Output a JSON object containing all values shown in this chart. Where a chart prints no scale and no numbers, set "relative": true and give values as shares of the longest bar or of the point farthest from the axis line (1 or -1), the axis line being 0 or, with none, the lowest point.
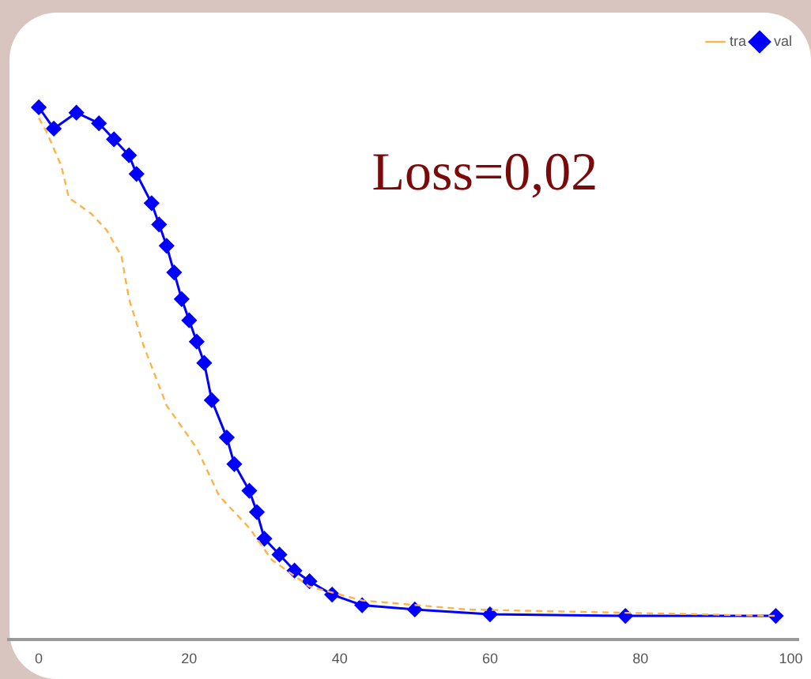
{
  "chart_data": {
    "type": "line",
    "relative": true,
    "xlim": [
      -4,
      101
    ],
    "xticks": [
      0,
      20,
      40,
      60,
      80,
      100
    ],
    "legend": "top right",
    "grid": false,
    "annotations": [
      "Loss=0,02"
    ],
    "series": [
      {
        "name": "tra",
        "color": "#ffb347",
        "line_style": "dashed",
        "marker": "none",
        "x": [
          0,
          1,
          3,
          4,
          7,
          9,
          11,
          12,
          14,
          17,
          21,
          24,
          28,
          31,
          36,
          43,
          57,
          98
        ],
        "values": [
          0.98,
          0.955,
          0.89,
          0.83,
          0.8,
          0.77,
          0.72,
          0.64,
          0.55,
          0.44,
          0.36,
          0.27,
          0.21,
          0.15,
          0.1,
          0.074,
          0.057,
          0.045
        ]
      },
      {
        "name": "val",
        "color": "#0000ff",
        "line_style": "solid",
        "marker": "diamond",
        "x": [
          0,
          2,
          5,
          8,
          10,
          12,
          13,
          15,
          16,
          17,
          18,
          19,
          20,
          21,
          22,
          23,
          25,
          26,
          28,
          29,
          30,
          32,
          34,
          36,
          39,
          43,
          50,
          60,
          78,
          98
        ],
        "values": [
          1,
          0.96,
          0.99,
          0.97,
          0.94,
          0.91,
          0.875,
          0.82,
          0.78,
          0.74,
          0.69,
          0.64,
          0.6,
          0.56,
          0.52,
          0.45,
          0.38,
          0.33,
          0.28,
          0.24,
          0.19,
          0.16,
          0.13,
          0.11,
          0.085,
          0.065,
          0.057,
          0.048,
          0.045,
          0.045
        ]
      }
    ]
  }
}
